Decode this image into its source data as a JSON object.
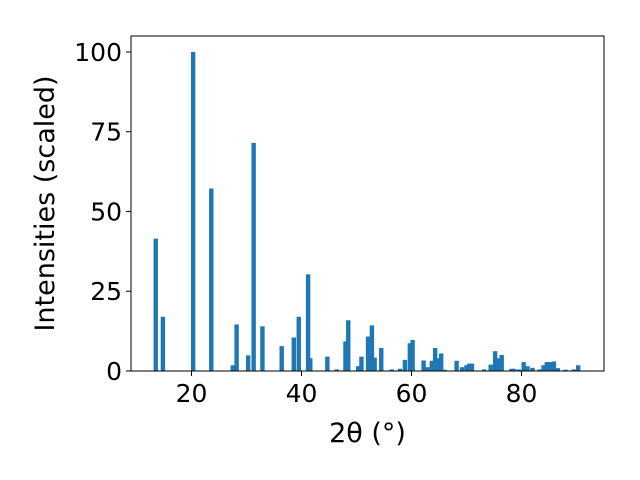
{
  "chart_data": {
    "type": "bar",
    "title": "",
    "xlabel": "2θ (°)",
    "ylabel": "Intensities (scaled)",
    "xlim": [
      9,
      95
    ],
    "ylim": [
      0,
      105
    ],
    "x_ticks": [
      20,
      40,
      60,
      80
    ],
    "y_ticks": [
      0,
      25,
      50,
      75,
      100
    ],
    "grid": false,
    "legend": "none",
    "bar_color": "#1f77b4",
    "bar_width": 0.8,
    "series": [
      {
        "x": [
          13.5,
          14.8,
          20.3,
          23.6,
          27.5,
          28.2,
          30.3,
          31.3,
          32.9,
          36.4,
          38.6,
          39.5,
          41.2,
          41.6,
          44.7,
          46.4,
          48.0,
          48.5,
          50.3,
          50.9,
          52.1,
          52.8,
          53.3,
          54.5,
          56.4,
          57.9,
          58.8,
          59.7,
          60.2,
          62.2,
          62.9,
          63.7,
          64.3,
          64.9,
          65.4,
          66.0,
          68.2,
          69.2,
          70.0,
          70.5,
          71.0,
          73.2,
          74.4,
          75.2,
          75.7,
          76.4,
          78.2,
          78.6,
          79.5,
          80.4,
          81.1,
          82.0,
          83.3,
          84.0,
          84.6,
          85.3,
          85.9,
          86.6,
          88.0,
          89.5,
          90.3
        ],
        "y": [
          41.5,
          17.0,
          100.0,
          57.2,
          1.8,
          14.6,
          4.9,
          71.5,
          14.0,
          7.8,
          10.5,
          17.0,
          30.3,
          4.0,
          4.5,
          0.5,
          9.3,
          15.9,
          1.5,
          4.5,
          10.8,
          14.3,
          4.2,
          7.2,
          0.5,
          0.7,
          3.5,
          8.7,
          9.7,
          3.3,
          1.2,
          3.2,
          7.2,
          4.0,
          5.5,
          0.4,
          3.2,
          1.2,
          1.8,
          2.3,
          2.3,
          0.5,
          2.0,
          6.2,
          4.0,
          5.0,
          0.7,
          0.7,
          0.5,
          2.8,
          1.5,
          1.0,
          0.5,
          1.8,
          2.8,
          2.8,
          3.0,
          0.9,
          0.4,
          0.5,
          1.8
        ]
      }
    ]
  }
}
